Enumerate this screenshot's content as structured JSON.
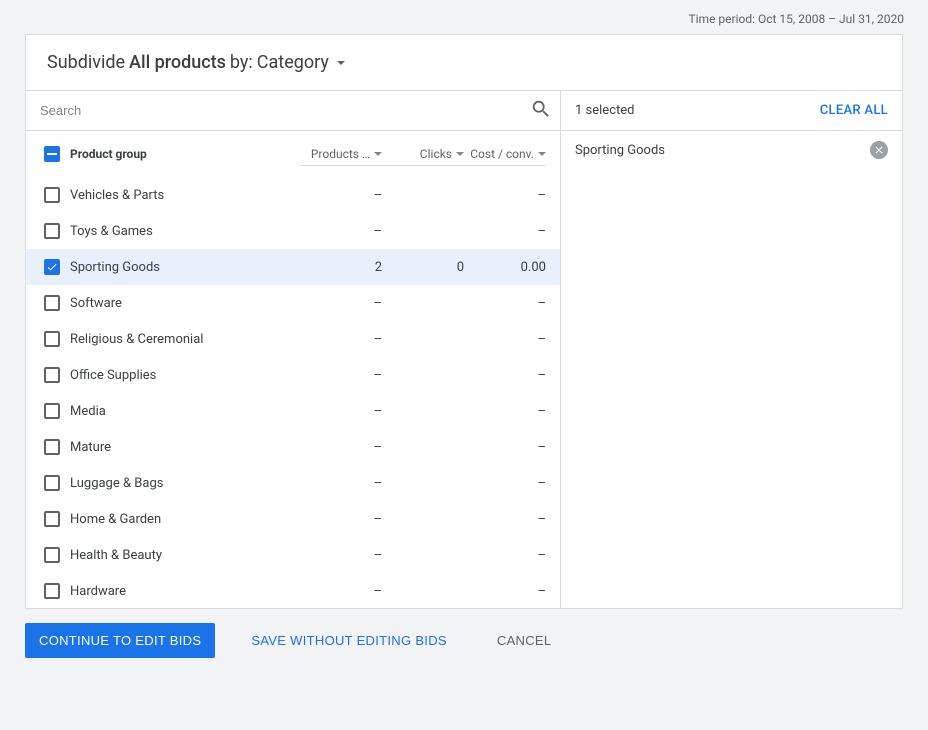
{
  "time_period_label": "Time period: Oct 15, 2008 – Jul 31, 2020",
  "header": {
    "prefix": "Subdivide",
    "bold": "All products",
    "by_label": "by:",
    "selector_value": "Category"
  },
  "search": {
    "placeholder": "Search"
  },
  "columns": {
    "name": "Product group",
    "metric1": "Products …",
    "metric2": "Clicks",
    "metric3": "Cost / conv."
  },
  "empty_cell": "–",
  "rows": [
    {
      "name": "Vehicles & Parts",
      "m1": "–",
      "m2": "",
      "m3": "–",
      "checked": false
    },
    {
      "name": "Toys & Games",
      "m1": "–",
      "m2": "",
      "m3": "–",
      "checked": false
    },
    {
      "name": "Sporting Goods",
      "m1": "2",
      "m2": "0",
      "m3": "0.00",
      "checked": true
    },
    {
      "name": "Software",
      "m1": "–",
      "m2": "",
      "m3": "–",
      "checked": false
    },
    {
      "name": "Religious & Ceremonial",
      "m1": "–",
      "m2": "",
      "m3": "–",
      "checked": false
    },
    {
      "name": "Office Supplies",
      "m1": "–",
      "m2": "",
      "m3": "–",
      "checked": false
    },
    {
      "name": "Media",
      "m1": "–",
      "m2": "",
      "m3": "–",
      "checked": false
    },
    {
      "name": "Mature",
      "m1": "–",
      "m2": "",
      "m3": "–",
      "checked": false
    },
    {
      "name": "Luggage & Bags",
      "m1": "–",
      "m2": "",
      "m3": "–",
      "checked": false
    },
    {
      "name": "Home & Garden",
      "m1": "–",
      "m2": "",
      "m3": "–",
      "checked": false
    },
    {
      "name": "Health & Beauty",
      "m1": "–",
      "m2": "",
      "m3": "–",
      "checked": false
    },
    {
      "name": "Hardware",
      "m1": "–",
      "m2": "",
      "m3": "–",
      "checked": false
    }
  ],
  "right": {
    "count_label": "1 selected",
    "clear_all": "CLEAR ALL",
    "selected": [
      {
        "name": "Sporting Goods"
      }
    ]
  },
  "footer": {
    "primary": "CONTINUE TO EDIT BIDS",
    "secondary": "SAVE WITHOUT EDITING BIDS",
    "cancel": "CANCEL"
  },
  "colors": {
    "accent": "#1a73e8",
    "selected_row_bg": "#e8f0fe",
    "border": "#dadce0",
    "text": "#3c4043",
    "muted": "#5f6368",
    "page_bg": "#f1f3f4"
  }
}
